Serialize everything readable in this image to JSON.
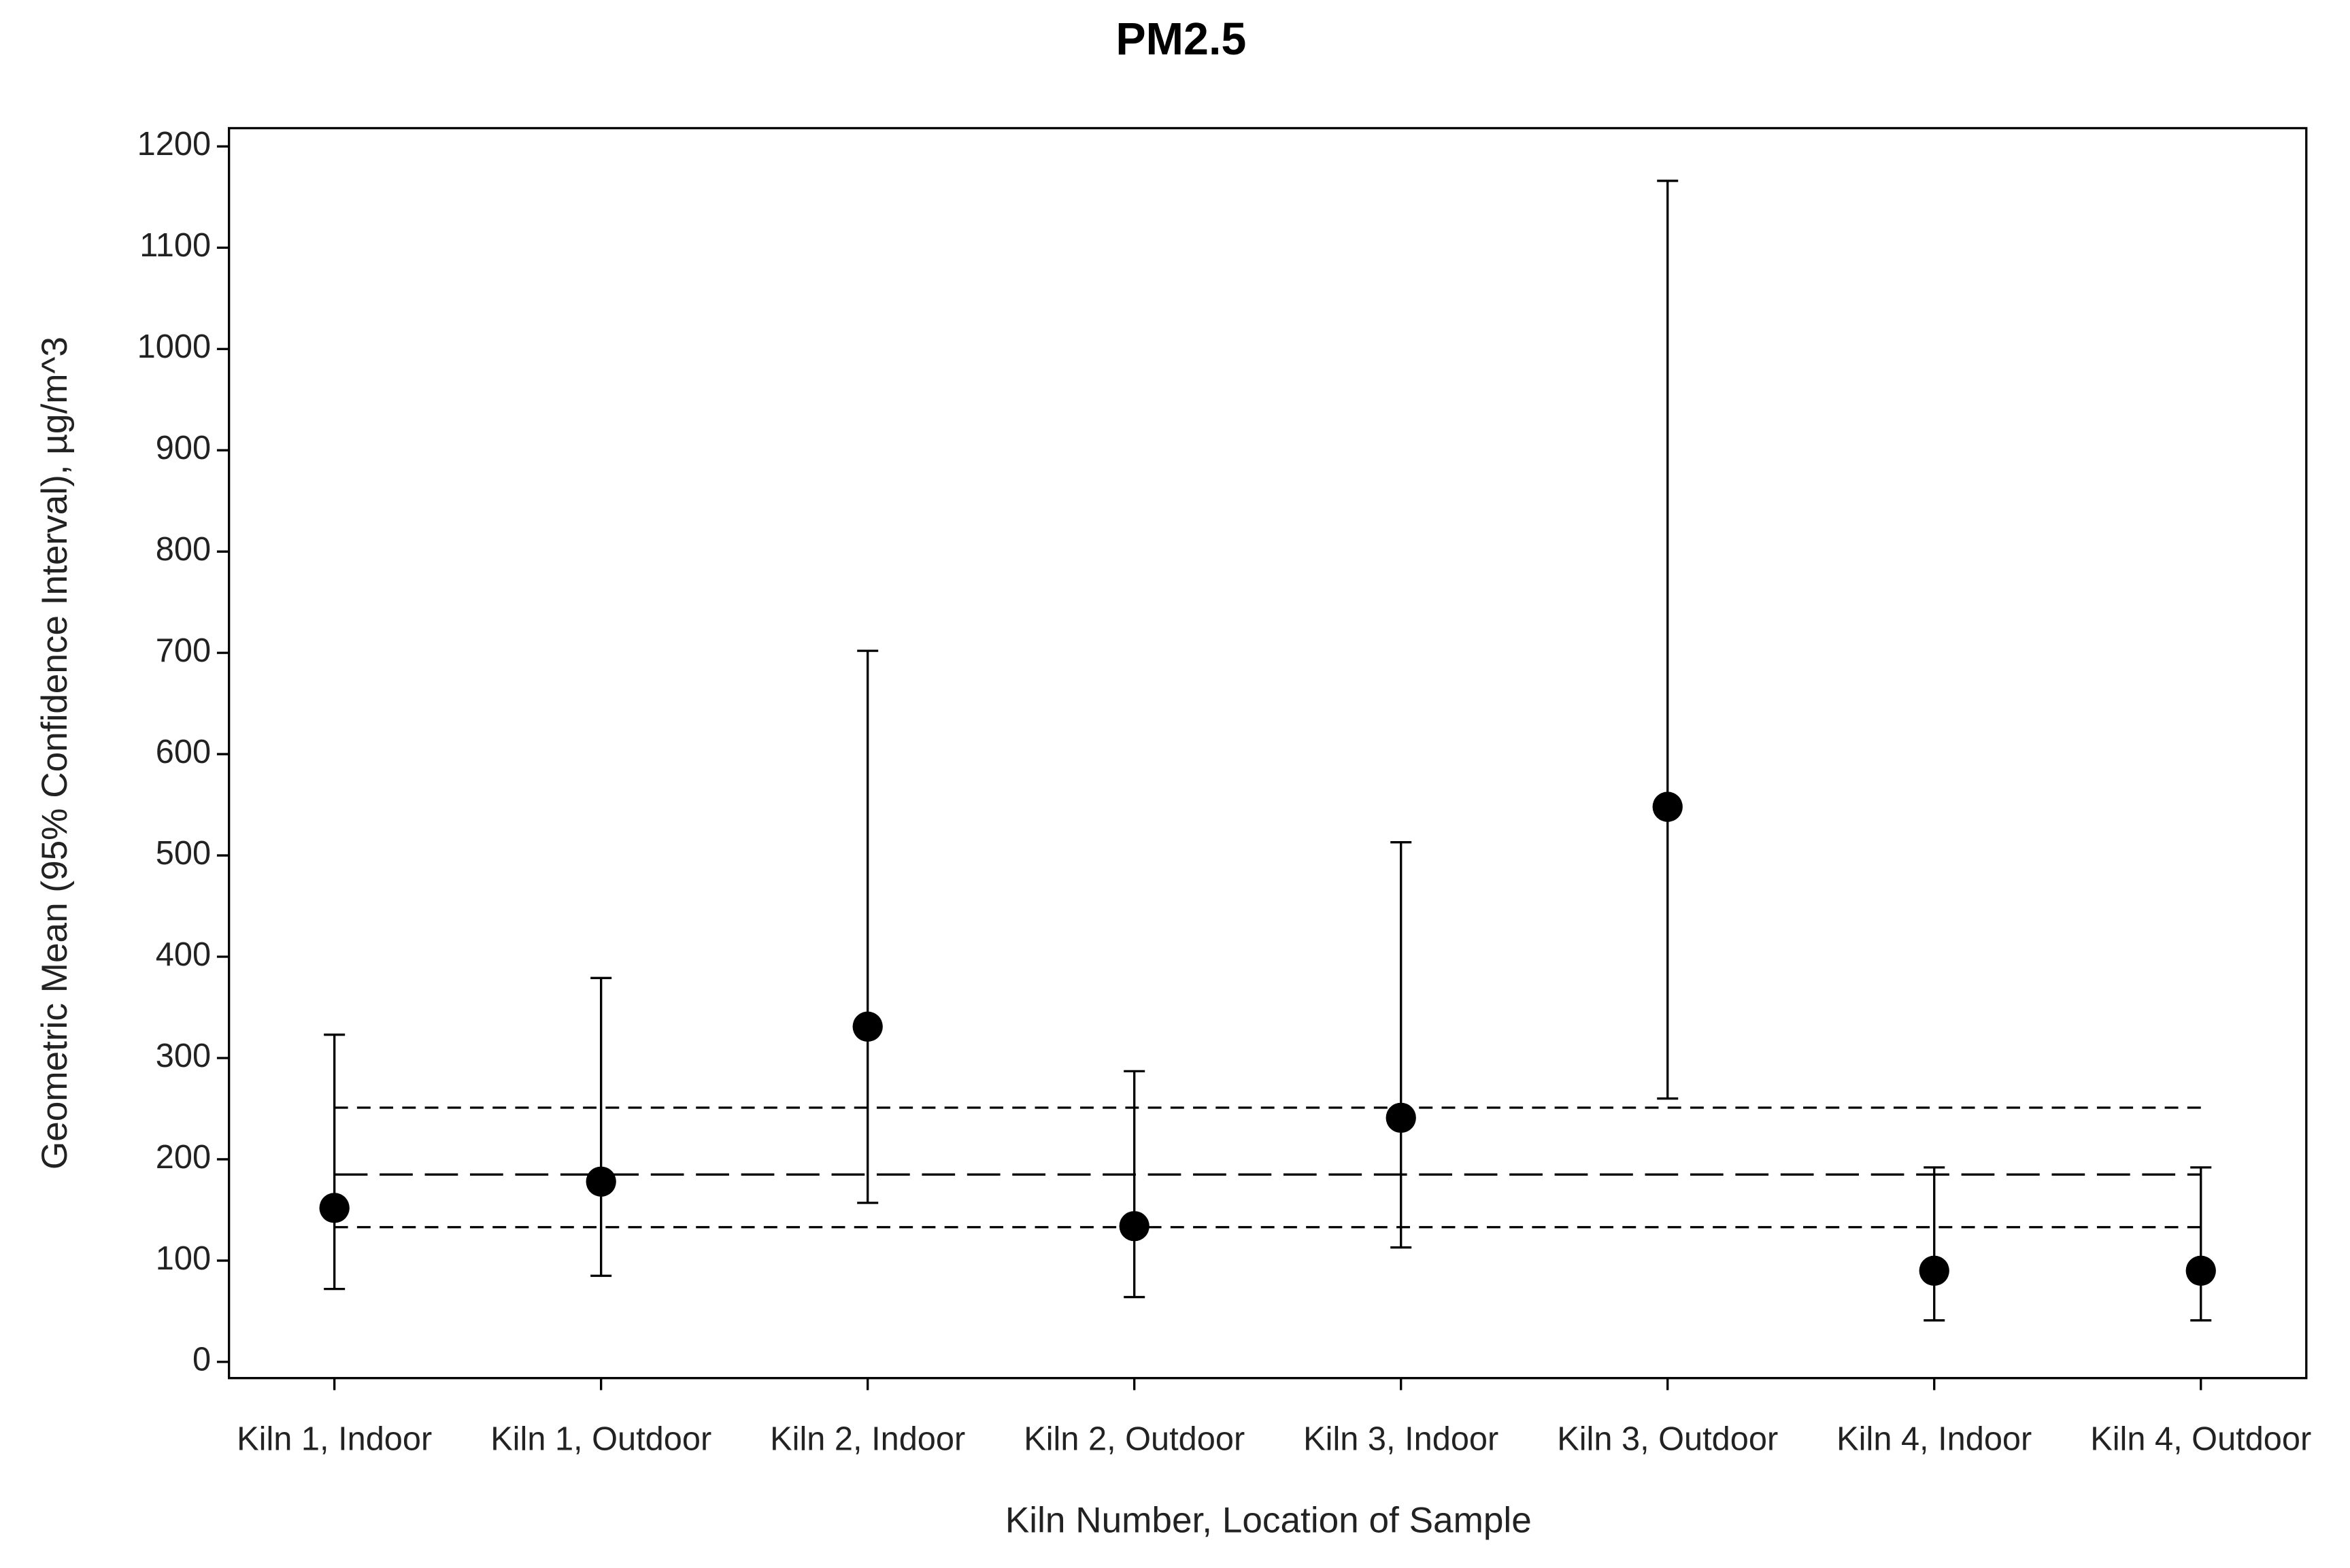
{
  "chart_data": {
    "type": "errorbar",
    "title": "PM2.5",
    "x_label": "Kiln Number, Location of Sample",
    "y_label": "Geometric Mean (95% Confidence Interval), µg/m^3",
    "categories": [
      "Kiln 1, Indoor",
      "Kiln 1, Outdoor",
      "Kiln 2, Indoor",
      "Kiln 2, Outdoor",
      "Kiln 3, Indoor",
      "Kiln 3, Outdoor",
      "Kiln 4, Indoor",
      "Kiln 4, Outdoor"
    ],
    "values": [
      152,
      178,
      331,
      134,
      241,
      548,
      90,
      90
    ],
    "lower": [
      72,
      85,
      157,
      64,
      113,
      260,
      41,
      41
    ],
    "upper": [
      323,
      379,
      702,
      287,
      513,
      1166,
      192,
      192
    ],
    "color": "#000000",
    "reference_lines": [
      {
        "value": 185,
        "style": "long-dash"
      },
      {
        "value": 251,
        "style": "short-dash"
      },
      {
        "value": 133,
        "style": "short-dash"
      }
    ],
    "ylim": [
      -16,
      1218
    ],
    "yticks": [
      0,
      100,
      200,
      300,
      400,
      500,
      600,
      700,
      800,
      900,
      1000,
      1100,
      1200
    ],
    "grid": false
  }
}
